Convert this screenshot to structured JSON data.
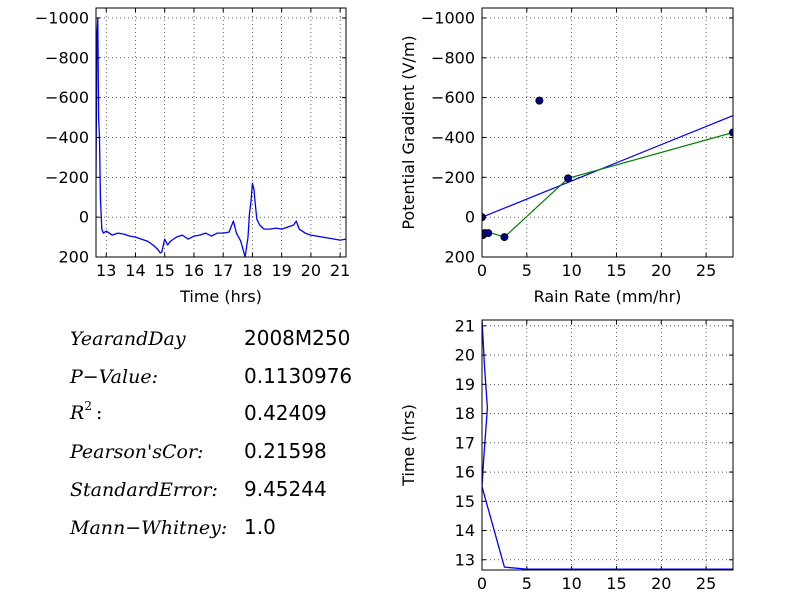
{
  "chart_data": [
    {
      "id": "timeseries",
      "type": "line",
      "title": "",
      "xlabel": "Time (hrs)",
      "ylabel": "",
      "xlim": [
        12.65,
        21.2
      ],
      "ylim": [
        200,
        -1050
      ],
      "y_inverted": true,
      "grid": true,
      "xticks": [
        13,
        14,
        15,
        16,
        17,
        18,
        19,
        20,
        21
      ],
      "xtick_labels": [
        "13",
        "14",
        "15",
        "16",
        "17",
        "18",
        "19",
        "20",
        "21"
      ],
      "yticks": [
        -1000,
        -800,
        -600,
        -400,
        -200,
        0,
        200
      ],
      "ytick_labels": [
        "−1000",
        "−800",
        "−600",
        "−400",
        "−200",
        "0",
        "200"
      ],
      "series": [
        {
          "color": "#0000ff",
          "x": [
            12.65,
            12.68,
            12.71,
            12.74,
            12.77,
            12.8,
            12.85,
            12.9,
            13.0,
            13.2,
            13.4,
            13.6,
            13.8,
            14.0,
            14.2,
            14.4,
            14.6,
            14.75,
            14.85,
            14.9,
            15.0,
            15.1,
            15.2,
            15.4,
            15.6,
            15.8,
            16.0,
            16.2,
            16.4,
            16.6,
            16.8,
            17.0,
            17.2,
            17.35,
            17.45,
            17.6,
            17.75,
            17.85,
            17.9,
            17.95,
            18.0,
            18.05,
            18.1,
            18.15,
            18.25,
            18.4,
            18.6,
            18.8,
            19.0,
            19.2,
            19.4,
            19.5,
            19.6,
            19.8,
            20.0,
            20.2,
            20.4,
            20.6,
            20.8,
            21.0,
            21.2
          ],
          "y": [
            -200,
            -900,
            -1000,
            -500,
            -400,
            -100,
            60,
            80,
            70,
            90,
            80,
            85,
            95,
            100,
            110,
            120,
            140,
            160,
            180,
            175,
            110,
            140,
            120,
            100,
            90,
            110,
            95,
            90,
            80,
            95,
            80,
            80,
            75,
            20,
            80,
            120,
            200,
            100,
            -20,
            -80,
            -170,
            -140,
            -60,
            10,
            40,
            60,
            60,
            55,
            60,
            50,
            40,
            20,
            60,
            80,
            90,
            95,
            100,
            105,
            110,
            115,
            110
          ]
        }
      ]
    },
    {
      "id": "scatter",
      "type": "scatter",
      "title": "",
      "xlabel": "Rain Rate (mm/hr)",
      "ylabel": "Potential Gradient (V/m)",
      "xlim": [
        0,
        28
      ],
      "ylim": [
        200,
        -1050
      ],
      "y_inverted": true,
      "grid": true,
      "xticks": [
        0,
        5,
        10,
        15,
        20,
        25
      ],
      "xtick_labels": [
        "0",
        "5",
        "10",
        "15",
        "20",
        "25"
      ],
      "yticks": [
        -1000,
        -800,
        -600,
        -400,
        -200,
        0,
        200
      ],
      "ytick_labels": [
        "−1000",
        "−800",
        "−600",
        "−400",
        "−200",
        "0",
        "200"
      ],
      "points": {
        "color": "#00008b",
        "x": [
          0.0,
          0.1,
          0.3,
          0.7,
          2.5,
          6.4,
          9.6,
          28.0
        ],
        "y": [
          0,
          90,
          80,
          80,
          100,
          -585,
          -195,
          -425
        ]
      },
      "lines": [
        {
          "color": "#0000ff",
          "x": [
            0,
            28
          ],
          "y": [
            0,
            -510
          ]
        },
        {
          "color": "#008000",
          "x": [
            0,
            0.2,
            0.7,
            2.5,
            9.6,
            28
          ],
          "y": [
            75,
            70,
            75,
            100,
            -195,
            -425
          ]
        }
      ]
    },
    {
      "id": "cumulative",
      "type": "line",
      "title": "",
      "xlabel": "",
      "ylabel": "Time (hrs)",
      "xlim": [
        0,
        28
      ],
      "ylim": [
        12.65,
        21.2
      ],
      "grid": true,
      "xticks": [
        0,
        5,
        10,
        15,
        20,
        25
      ],
      "xtick_labels": [
        "0",
        "5",
        "10",
        "15",
        "20",
        "25"
      ],
      "yticks": [
        13,
        14,
        15,
        16,
        17,
        18,
        19,
        20,
        21
      ],
      "ytick_labels": [
        "13",
        "14",
        "15",
        "16",
        "17",
        "18",
        "19",
        "20",
        "21"
      ],
      "series": [
        {
          "color": "#0000ff",
          "x": [
            0.0,
            0.3,
            0.6,
            0.2,
            0.0,
            2.5,
            5.0,
            28.0
          ],
          "y": [
            21.2,
            19.5,
            18.2,
            16.5,
            15.5,
            12.75,
            12.68,
            12.68
          ]
        }
      ]
    }
  ],
  "stats": [
    {
      "name": "YearandDay",
      "value": "2008M250"
    },
    {
      "name": "P−Value:",
      "value": "0.1130976"
    },
    {
      "name": "R",
      "sup": "2",
      "suffix": ":",
      "value": "0.42409"
    },
    {
      "name": "Pearson'sCor:",
      "value": "0.21598"
    },
    {
      "name": "StandardError:",
      "value": "9.45244"
    },
    {
      "name": "Mann−Whitney:",
      "value": "1.0"
    }
  ]
}
